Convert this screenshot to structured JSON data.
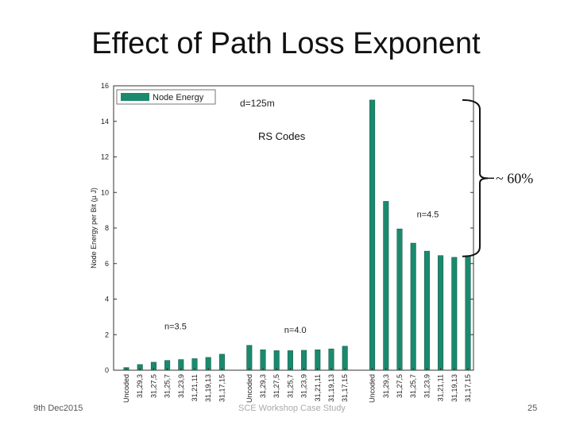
{
  "slide": {
    "title": "Effect of Path Loss Exponent",
    "footer_date": "9th Dec2015",
    "footer_center": "SCE Workshop Case Study",
    "page_number": "25"
  },
  "chart_data": {
    "type": "bar",
    "ylabel": "Node Energy per Bit (µ J)",
    "ylim": [
      0,
      16
    ],
    "yticks": [
      0,
      2,
      4,
      6,
      8,
      10,
      12,
      14,
      16
    ],
    "grid": false,
    "legend_position": "top-left",
    "series": [
      {
        "name": "Node Energy",
        "color": "#1a8a6e"
      }
    ],
    "groups": [
      {
        "label": "n=3.5",
        "categories": [
          "Uncoded",
          "31,29,3",
          "31,27,5",
          "31,25,7",
          "31,23,9",
          "31,21,11",
          "31,19,13",
          "31,17,15"
        ],
        "values": [
          0.15,
          0.32,
          0.45,
          0.55,
          0.6,
          0.65,
          0.72,
          0.9
        ]
      },
      {
        "label": "n=4.0",
        "categories": [
          "Uncoded",
          "31,29,3",
          "31,27,5",
          "31,25,7",
          "31,23,9",
          "31,21,11",
          "31,19,13",
          "31,17,15"
        ],
        "values": [
          1.4,
          1.15,
          1.1,
          1.1,
          1.12,
          1.15,
          1.2,
          1.35
        ]
      },
      {
        "label": "n=4.5",
        "categories": [
          "Uncoded",
          "31,29,3",
          "31,27,5",
          "31,25,7",
          "31,23,9",
          "31,21,11",
          "31,19,13",
          "31,17,15"
        ],
        "values": [
          15.2,
          9.5,
          7.95,
          7.15,
          6.7,
          6.45,
          6.35,
          6.45
        ]
      }
    ],
    "annotations": {
      "distance": "d=125m",
      "codes": "RS Codes",
      "reduction": "~ 60%"
    }
  }
}
